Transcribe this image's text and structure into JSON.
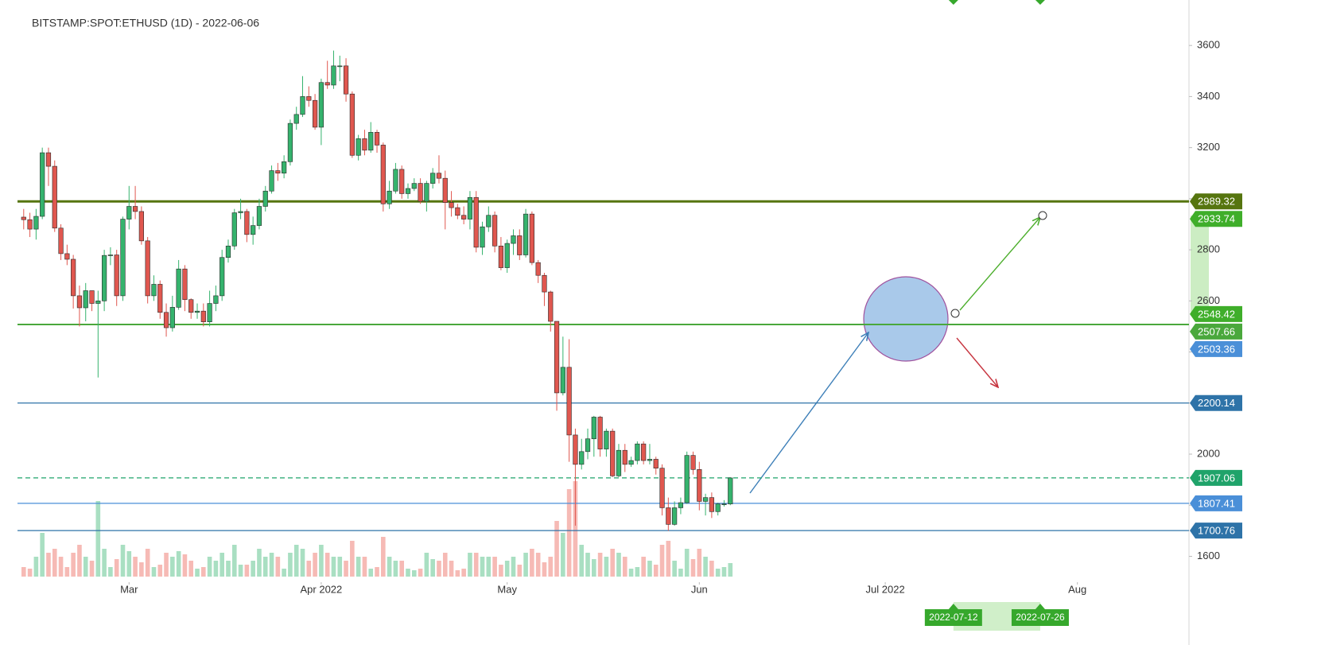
{
  "chart_data": {
    "type": "candlestick",
    "title": "BITSTAMP:SPOT:ETHUSD (1D) - 2022-06-06",
    "x": [
      "2022-02-12",
      "2022-02-13",
      "2022-02-14",
      "2022-02-15",
      "2022-02-16",
      "2022-02-17",
      "2022-02-18",
      "2022-02-19",
      "2022-02-20",
      "2022-02-21",
      "2022-02-22",
      "2022-02-23",
      "2022-02-24",
      "2022-02-25",
      "2022-02-26",
      "2022-02-27",
      "2022-02-28",
      "2022-03-01",
      "2022-03-02",
      "2022-03-03",
      "2022-03-04",
      "2022-03-05",
      "2022-03-06",
      "2022-03-07",
      "2022-03-08",
      "2022-03-09",
      "2022-03-10",
      "2022-03-11",
      "2022-03-12",
      "2022-03-13",
      "2022-03-14",
      "2022-03-15",
      "2022-03-16",
      "2022-03-17",
      "2022-03-18",
      "2022-03-19",
      "2022-03-20",
      "2022-03-21",
      "2022-03-22",
      "2022-03-23",
      "2022-03-24",
      "2022-03-25",
      "2022-03-26",
      "2022-03-27",
      "2022-03-28",
      "2022-03-29",
      "2022-03-30",
      "2022-03-31",
      "2022-04-01",
      "2022-04-02",
      "2022-04-03",
      "2022-04-04",
      "2022-04-05",
      "2022-04-06",
      "2022-04-07",
      "2022-04-08",
      "2022-04-09",
      "2022-04-10",
      "2022-04-11",
      "2022-04-12",
      "2022-04-13",
      "2022-04-14",
      "2022-04-15",
      "2022-04-16",
      "2022-04-17",
      "2022-04-18",
      "2022-04-19",
      "2022-04-20",
      "2022-04-21",
      "2022-04-22",
      "2022-04-23",
      "2022-04-24",
      "2022-04-25",
      "2022-04-26",
      "2022-04-27",
      "2022-04-28",
      "2022-04-29",
      "2022-04-30",
      "2022-05-01",
      "2022-05-02",
      "2022-05-03",
      "2022-05-04",
      "2022-05-05",
      "2022-05-06",
      "2022-05-07",
      "2022-05-08",
      "2022-05-09",
      "2022-05-10",
      "2022-05-11",
      "2022-05-12",
      "2022-05-13",
      "2022-05-14",
      "2022-05-15",
      "2022-05-16",
      "2022-05-17",
      "2022-05-18",
      "2022-05-19",
      "2022-05-20",
      "2022-05-21",
      "2022-05-22",
      "2022-05-23",
      "2022-05-24",
      "2022-05-25",
      "2022-05-26",
      "2022-05-27",
      "2022-05-28",
      "2022-05-29",
      "2022-05-30",
      "2022-05-31",
      "2022-06-01",
      "2022-06-02",
      "2022-06-03",
      "2022-06-04",
      "2022-06-05",
      "2022-06-06"
    ],
    "open": [
      2928,
      2918,
      2881,
      2931,
      3180,
      3127,
      2885,
      2785,
      2763,
      2620,
      2573,
      2640,
      2590,
      2600,
      2778,
      2780,
      2620,
      2920,
      2970,
      2950,
      2835,
      2620,
      2665,
      2555,
      2495,
      2575,
      2725,
      2605,
      2555,
      2560,
      2518,
      2590,
      2620,
      2770,
      2815,
      2945,
      2950,
      2860,
      2895,
      2970,
      3030,
      3110,
      3100,
      3145,
      3295,
      3330,
      3400,
      3385,
      3280,
      3455,
      3445,
      3520,
      3520,
      3410,
      3170,
      3235,
      3190,
      3260,
      3210,
      2980,
      3030,
      3115,
      3020,
      3040,
      3060,
      2990,
      3060,
      3100,
      3080,
      2985,
      2965,
      2935,
      2920,
      3005,
      2810,
      2890,
      2935,
      2815,
      2730,
      2825,
      2855,
      2780,
      2940,
      2750,
      2700,
      2635,
      2520,
      2240,
      2340,
      2075,
      1960,
      2010,
      2060,
      2145,
      2020,
      2090,
      1915,
      2015,
      1960,
      1975,
      2040,
      1975,
      1980,
      1945,
      1790,
      1725,
      1790,
      1810,
      1995,
      1940,
      1815,
      1830,
      1775,
      1805,
      1805
    ],
    "high": [
      2960,
      2945,
      2960,
      3200,
      3200,
      3150,
      2900,
      2820,
      2780,
      2660,
      2670,
      2640,
      2640,
      2800,
      2810,
      2800,
      2930,
      3050,
      3050,
      2970,
      2850,
      2700,
      2680,
      2590,
      2620,
      2760,
      2740,
      2610,
      2590,
      2590,
      2640,
      2660,
      2800,
      2840,
      2960,
      3000,
      2960,
      2930,
      3000,
      3050,
      3130,
      3140,
      3170,
      3310,
      3360,
      3480,
      3440,
      3410,
      3470,
      3540,
      3580,
      3560,
      3550,
      3420,
      3250,
      3270,
      3300,
      3270,
      3220,
      3070,
      3140,
      3130,
      3060,
      3080,
      3080,
      3070,
      3120,
      3170,
      3110,
      3030,
      2980,
      2970,
      3030,
      3030,
      2910,
      2970,
      2950,
      2850,
      2840,
      2880,
      2880,
      2960,
      2950,
      2760,
      2710,
      2640,
      2520,
      2460,
      2450,
      2100,
      2060,
      2100,
      2150,
      2150,
      2100,
      2100,
      2040,
      2040,
      1990,
      2050,
      2050,
      2040,
      1990,
      1960,
      1830,
      1815,
      1830,
      2010,
      2010,
      1970,
      1845,
      1850,
      1810,
      1820,
      1910
    ],
    "low": [
      2880,
      2850,
      2840,
      2920,
      3050,
      2870,
      2760,
      2740,
      2570,
      2500,
      2520,
      2560,
      2300,
      2560,
      2740,
      2580,
      2600,
      2880,
      2920,
      2820,
      2590,
      2600,
      2530,
      2460,
      2480,
      2565,
      2560,
      2530,
      2530,
      2500,
      2500,
      2560,
      2600,
      2750,
      2800,
      2920,
      2830,
      2820,
      2880,
      2950,
      3020,
      3070,
      3080,
      3130,
      3270,
      3320,
      3360,
      3270,
      3210,
      3430,
      3430,
      3460,
      3380,
      3160,
      3150,
      3170,
      3180,
      3180,
      2950,
      2960,
      3020,
      3000,
      3000,
      3030,
      2980,
      2950,
      3040,
      3060,
      2880,
      2930,
      2920,
      2900,
      2880,
      2790,
      2780,
      2870,
      2790,
      2720,
      2710,
      2780,
      2760,
      2770,
      2740,
      2670,
      2580,
      2480,
      2170,
      2230,
      1970,
      1720,
      1940,
      1980,
      1990,
      1990,
      1990,
      1910,
      1910,
      1930,
      1950,
      1960,
      1960,
      1960,
      1920,
      1760,
      1700,
      1720,
      1765,
      1805,
      1920,
      1780,
      1760,
      1750,
      1760,
      1795,
      1800
    ],
    "close": [
      2918,
      2881,
      2931,
      3180,
      3127,
      2885,
      2785,
      2763,
      2620,
      2573,
      2640,
      2590,
      2600,
      2778,
      2780,
      2620,
      2920,
      2970,
      2950,
      2835,
      2620,
      2665,
      2555,
      2495,
      2575,
      2725,
      2605,
      2555,
      2560,
      2518,
      2590,
      2620,
      2770,
      2815,
      2945,
      2950,
      2860,
      2895,
      2970,
      3030,
      3110,
      3100,
      3145,
      3295,
      3330,
      3400,
      3385,
      3280,
      3455,
      3445,
      3520,
      3520,
      3410,
      3170,
      3235,
      3190,
      3260,
      3210,
      2980,
      3030,
      3115,
      3020,
      3040,
      3060,
      2990,
      3060,
      3100,
      3080,
      2985,
      2965,
      2935,
      2920,
      3005,
      2810,
      2890,
      2935,
      2815,
      2730,
      2825,
      2855,
      2780,
      2940,
      2750,
      2700,
      2635,
      2520,
      2240,
      2340,
      2075,
      1960,
      2010,
      2060,
      2145,
      2020,
      2090,
      1915,
      2015,
      1960,
      1975,
      2040,
      1975,
      1980,
      1945,
      1790,
      1725,
      1790,
      1810,
      1995,
      1940,
      1815,
      1830,
      1775,
      1805,
      1805,
      1907
    ],
    "volume": [
      12,
      10,
      25,
      55,
      30,
      35,
      25,
      12,
      30,
      40,
      25,
      20,
      95,
      35,
      12,
      22,
      40,
      32,
      25,
      18,
      35,
      12,
      15,
      30,
      25,
      32,
      28,
      20,
      10,
      12,
      25,
      20,
      30,
      20,
      40,
      15,
      15,
      20,
      35,
      25,
      30,
      25,
      10,
      30,
      40,
      35,
      20,
      30,
      40,
      30,
      25,
      25,
      20,
      45,
      25,
      25,
      10,
      12,
      50,
      25,
      20,
      20,
      10,
      8,
      10,
      30,
      22,
      20,
      30,
      20,
      8,
      10,
      30,
      30,
      25,
      25,
      25,
      15,
      20,
      25,
      15,
      30,
      35,
      30,
      18,
      25,
      70,
      55,
      110,
      120,
      40,
      30,
      22,
      30,
      25,
      35,
      30,
      25,
      10,
      12,
      25,
      20,
      15,
      40,
      45,
      20,
      10,
      35,
      22,
      35,
      25,
      20,
      10,
      12,
      17
    ],
    "up_color": "#35b36d",
    "down_color": "#e0574f",
    "outline_color": "#2a2a2a",
    "volume_up_color": "#a9dfc2",
    "volume_down_color": "#f6bab5",
    "xlim": [
      "2022-02-11",
      "2022-08-19"
    ],
    "xticks": [
      {
        "value": "2022-03-01",
        "label": "Mar"
      },
      {
        "value": "2022-04-01",
        "label": "Apr 2022"
      },
      {
        "value": "2022-05-01",
        "label": "May"
      },
      {
        "value": "2022-06-01",
        "label": "Jun"
      },
      {
        "value": "2022-07-01",
        "label": "Jul 2022"
      },
      {
        "value": "2022-08-01",
        "label": "Aug"
      }
    ],
    "ylim": [
      1505,
      3778
    ],
    "yticks": [
      1600,
      1800,
      2000,
      2200,
      2400,
      2600,
      2800,
      3000,
      3200,
      3400,
      3600
    ],
    "levels": [
      {
        "value": 2989.32,
        "color": "#56750f",
        "line": "thick"
      },
      {
        "value": 2933.74,
        "color": "#3fae2a"
      },
      {
        "value": 2548.42,
        "color": "#3fae2a"
      },
      {
        "value": 2507.66,
        "color": "#4aa83c",
        "line": "solid"
      },
      {
        "value": 2503.36,
        "color": "#4a8fd8"
      },
      {
        "value": 2200.14,
        "color": "#2e73a8",
        "line": "thin"
      },
      {
        "value": 1907.06,
        "color": "#1fa36a",
        "line": "dashed"
      },
      {
        "value": 1807.41,
        "color": "#4a8fd8",
        "line": "thin"
      },
      {
        "value": 1700.76,
        "color": "#2e73a8",
        "line": "thin"
      }
    ],
    "date_markers": [
      "2022-07-12",
      "2022-07-26"
    ],
    "date_marker_color": "#36a82c"
  }
}
